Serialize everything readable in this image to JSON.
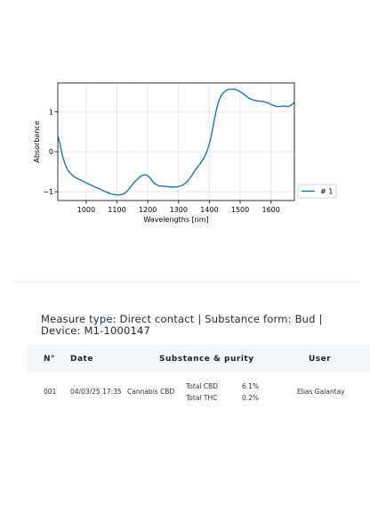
{
  "chart_data": {
    "type": "line",
    "title": "",
    "xlabel": "Wavelengths [nm]",
    "ylabel": "Absorbance",
    "xlim": [
      908,
      1676
    ],
    "ylim": [
      -1.22,
      1.72
    ],
    "xticks": [
      1000,
      1100,
      1200,
      1300,
      1400,
      1500,
      1600
    ],
    "yticks": [
      -1,
      0,
      1
    ],
    "grid": true,
    "legend": "outside-right",
    "series": [
      {
        "name": "# 1",
        "color": "#1f77b4",
        "x": [
          908,
          915,
          925,
          940,
          960,
          980,
          1000,
          1020,
          1040,
          1060,
          1080,
          1100,
          1120,
          1135,
          1150,
          1165,
          1180,
          1195,
          1210,
          1220,
          1235,
          1250,
          1270,
          1290,
          1310,
          1325,
          1340,
          1355,
          1370,
          1385,
          1400,
          1410,
          1420,
          1430,
          1440,
          1450,
          1460,
          1470,
          1480,
          1490,
          1500,
          1510,
          1520,
          1530,
          1540,
          1555,
          1570,
          1590,
          1600,
          1610,
          1620,
          1630,
          1640,
          1655,
          1665,
          1676
        ],
        "y": [
          0.38,
          0.2,
          -0.15,
          -0.45,
          -0.62,
          -0.7,
          -0.78,
          -0.85,
          -0.92,
          -0.99,
          -1.05,
          -1.08,
          -1.06,
          -0.97,
          -0.82,
          -0.7,
          -0.6,
          -0.58,
          -0.68,
          -0.78,
          -0.85,
          -0.86,
          -0.88,
          -0.88,
          -0.85,
          -0.77,
          -0.63,
          -0.45,
          -0.3,
          -0.12,
          0.2,
          0.55,
          0.95,
          1.25,
          1.42,
          1.5,
          1.55,
          1.56,
          1.56,
          1.54,
          1.5,
          1.45,
          1.39,
          1.33,
          1.3,
          1.27,
          1.26,
          1.22,
          1.18,
          1.15,
          1.13,
          1.13,
          1.14,
          1.13,
          1.16,
          1.23
        ]
      }
    ]
  },
  "measure": {
    "info": "Measure type: Direct contact | Substance form: Bud | Device: M1-1000147"
  },
  "table": {
    "headers": {
      "num": "N°",
      "date": "Date",
      "substance": "Substance & purity",
      "user": "User"
    },
    "row": {
      "num": "001",
      "date": "04/03/25 17:35",
      "substance": "Cannabis CBD",
      "purity": [
        {
          "label": "Total CBD",
          "value": "6.1%"
        },
        {
          "label": "Total THC",
          "value": "0.2%"
        }
      ],
      "user": "Elias Galantay"
    }
  }
}
